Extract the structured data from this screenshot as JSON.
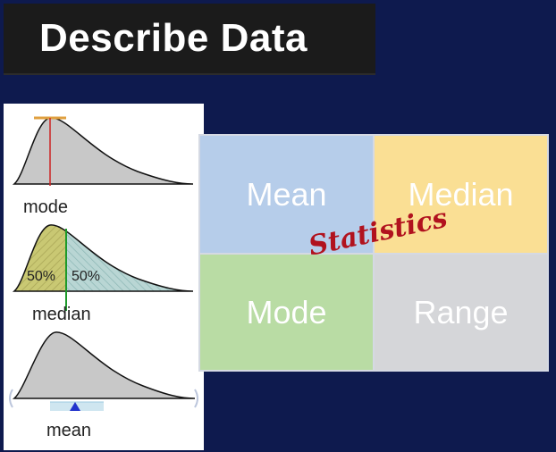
{
  "title": "Describe Data",
  "distributions": {
    "mode_label": "mode",
    "median_label": "median",
    "median_left_pct": "50%",
    "median_right_pct": "50%",
    "mean_label": "mean"
  },
  "grid": {
    "center_label": "Statistics",
    "cells": [
      {
        "label": "Mean",
        "color": "#b6cdea"
      },
      {
        "label": "Median",
        "color": "#fadf94"
      },
      {
        "label": "Mode",
        "color": "#b9dca4"
      },
      {
        "label": "Range",
        "color": "#d5d6d9"
      }
    ]
  },
  "colors": {
    "background": "#0e1a4e",
    "mode_line": "#cc2222",
    "median_line": "#1d9a2a",
    "mean_pivot": "#2233cc",
    "statistics_text": "#b1121e"
  }
}
